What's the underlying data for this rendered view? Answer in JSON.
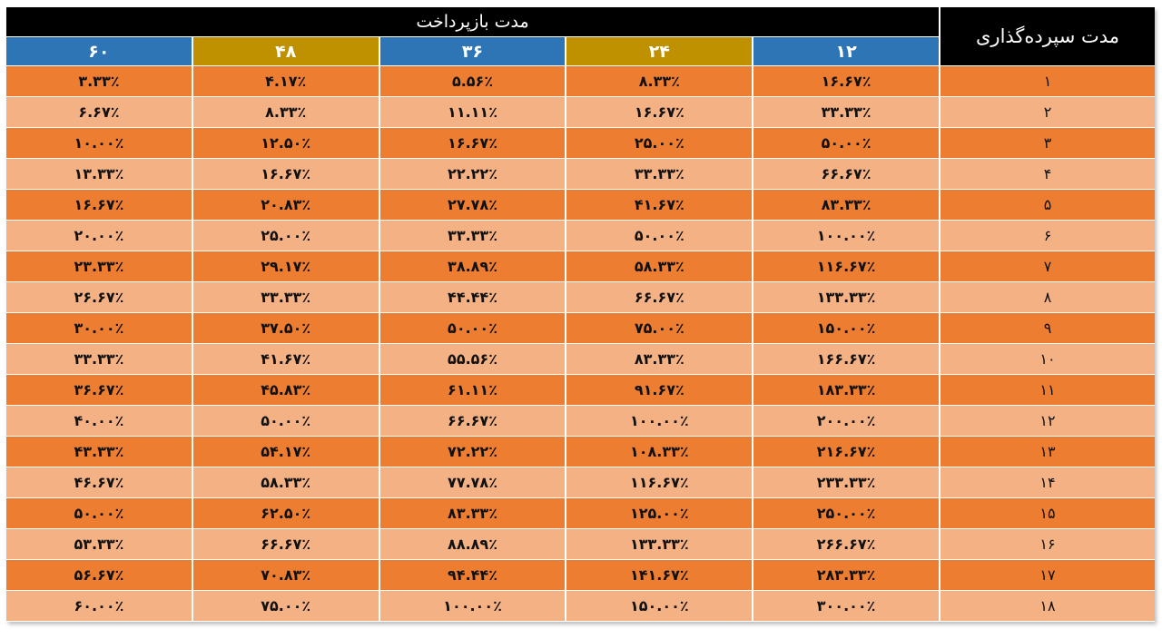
{
  "header": {
    "deposit_period": "مدت سپرده‌گذاری",
    "repayment_period": "مدت بازپرداخت"
  },
  "columns": [
    "۱۲",
    "۲۴",
    "۳۶",
    "۴۸",
    "۶۰"
  ],
  "column_colors": [
    "#2E75B6",
    "#BF9000",
    "#2E75B6",
    "#BF9000",
    "#2E75B6"
  ],
  "row_colors": [
    "#ED7D31",
    "#F4B183"
  ],
  "rows": [
    {
      "month": "۱",
      "values": [
        "۱۶.۶۷٪",
        "۸.۳۳٪",
        "۵.۵۶٪",
        "۴.۱۷٪",
        "۳.۳۳٪"
      ]
    },
    {
      "month": "۲",
      "values": [
        "۳۳.۳۳٪",
        "۱۶.۶۷٪",
        "۱۱.۱۱٪",
        "۸.۳۳٪",
        "۶.۶۷٪"
      ]
    },
    {
      "month": "۳",
      "values": [
        "۵۰.۰۰٪",
        "۲۵.۰۰٪",
        "۱۶.۶۷٪",
        "۱۲.۵۰٪",
        "۱۰.۰۰٪"
      ]
    },
    {
      "month": "۴",
      "values": [
        "۶۶.۶۷٪",
        "۳۳.۳۳٪",
        "۲۲.۲۲٪",
        "۱۶.۶۷٪",
        "۱۳.۳۳٪"
      ]
    },
    {
      "month": "۵",
      "values": [
        "۸۳.۳۳٪",
        "۴۱.۶۷٪",
        "۲۷.۷۸٪",
        "۲۰.۸۳٪",
        "۱۶.۶۷٪"
      ]
    },
    {
      "month": "۶",
      "values": [
        "۱۰۰.۰۰٪",
        "۵۰.۰۰٪",
        "۳۳.۳۳٪",
        "۲۵.۰۰٪",
        "۲۰.۰۰٪"
      ]
    },
    {
      "month": "۷",
      "values": [
        "۱۱۶.۶۷٪",
        "۵۸.۳۳٪",
        "۳۸.۸۹٪",
        "۲۹.۱۷٪",
        "۲۳.۳۳٪"
      ]
    },
    {
      "month": "۸",
      "values": [
        "۱۳۳.۳۳٪",
        "۶۶.۶۷٪",
        "۴۴.۴۴٪",
        "۳۳.۳۳٪",
        "۲۶.۶۷٪"
      ]
    },
    {
      "month": "۹",
      "values": [
        "۱۵۰.۰۰٪",
        "۷۵.۰۰٪",
        "۵۰.۰۰٪",
        "۳۷.۵۰٪",
        "۳۰.۰۰٪"
      ]
    },
    {
      "month": "۱۰",
      "values": [
        "۱۶۶.۶۷٪",
        "۸۳.۳۳٪",
        "۵۵.۵۶٪",
        "۴۱.۶۷٪",
        "۳۳.۳۳٪"
      ]
    },
    {
      "month": "۱۱",
      "values": [
        "۱۸۳.۳۳٪",
        "۹۱.۶۷٪",
        "۶۱.۱۱٪",
        "۴۵.۸۳٪",
        "۳۶.۶۷٪"
      ]
    },
    {
      "month": "۱۲",
      "values": [
        "۲۰۰.۰۰٪",
        "۱۰۰.۰۰٪",
        "۶۶.۶۷٪",
        "۵۰.۰۰٪",
        "۴۰.۰۰٪"
      ]
    },
    {
      "month": "۱۳",
      "values": [
        "۲۱۶.۶۷٪",
        "۱۰۸.۳۳٪",
        "۷۲.۲۲٪",
        "۵۴.۱۷٪",
        "۴۳.۳۳٪"
      ]
    },
    {
      "month": "۱۴",
      "values": [
        "۲۳۳.۳۳٪",
        "۱۱۶.۶۷٪",
        "۷۷.۷۸٪",
        "۵۸.۳۳٪",
        "۴۶.۶۷٪"
      ]
    },
    {
      "month": "۱۵",
      "values": [
        "۲۵۰.۰۰٪",
        "۱۲۵.۰۰٪",
        "۸۳.۳۳٪",
        "۶۲.۵۰٪",
        "۵۰.۰۰٪"
      ]
    },
    {
      "month": "۱۶",
      "values": [
        "۲۶۶.۶۷٪",
        "۱۳۳.۳۳٪",
        "۸۸.۸۹٪",
        "۶۶.۶۷٪",
        "۵۳.۳۳٪"
      ]
    },
    {
      "month": "۱۷",
      "values": [
        "۲۸۳.۳۳٪",
        "۱۴۱.۶۷٪",
        "۹۴.۴۴٪",
        "۷۰.۸۳٪",
        "۵۶.۶۷٪"
      ]
    },
    {
      "month": "۱۸",
      "values": [
        "۳۰۰.۰۰٪",
        "۱۵۰.۰۰٪",
        "۱۰۰.۰۰٪",
        "۷۵.۰۰٪",
        "۶۰.۰۰٪"
      ]
    }
  ]
}
